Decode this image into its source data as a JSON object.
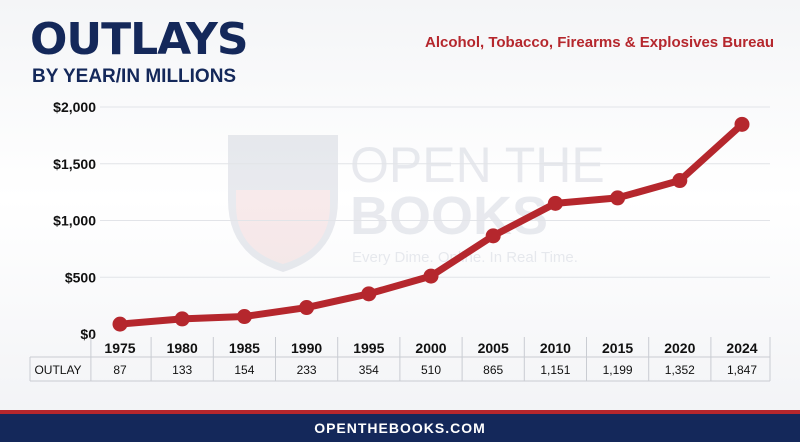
{
  "header": {
    "title": "OUTLAYS",
    "subtitle": "BY YEAR/IN MILLIONS",
    "agency": "Alcohol, Tobacco, Firearms & Explosives Bureau"
  },
  "watermark": {
    "line1": "OPEN THE",
    "line2": "BOOKS",
    "tagline": "Every Dime. Online. In Real Time."
  },
  "footer": {
    "site": "OPENTHEBOOKS.COM"
  },
  "colors": {
    "navy": "#14285a",
    "red": "#b5272d"
  },
  "chart_data": {
    "type": "line",
    "categories": [
      "1975",
      "1980",
      "1985",
      "1990",
      "1995",
      "2000",
      "2005",
      "2010",
      "2015",
      "2020",
      "2024"
    ],
    "values": [
      87,
      133,
      154,
      233,
      354,
      510,
      865,
      1151,
      1199,
      1352,
      1847
    ],
    "value_labels": [
      "87",
      "133",
      "154",
      "233",
      "354",
      "510",
      "865",
      "1,151",
      "1,199",
      "1,352",
      "1,847"
    ],
    "yticks": [
      "$0",
      "$500",
      "$1,000",
      "$1,500",
      "$2,000"
    ],
    "ytick_values": [
      0,
      500,
      1000,
      1500,
      2000
    ],
    "ylim": [
      0,
      2000
    ],
    "row_label": "OUTLAY",
    "grid": true
  }
}
